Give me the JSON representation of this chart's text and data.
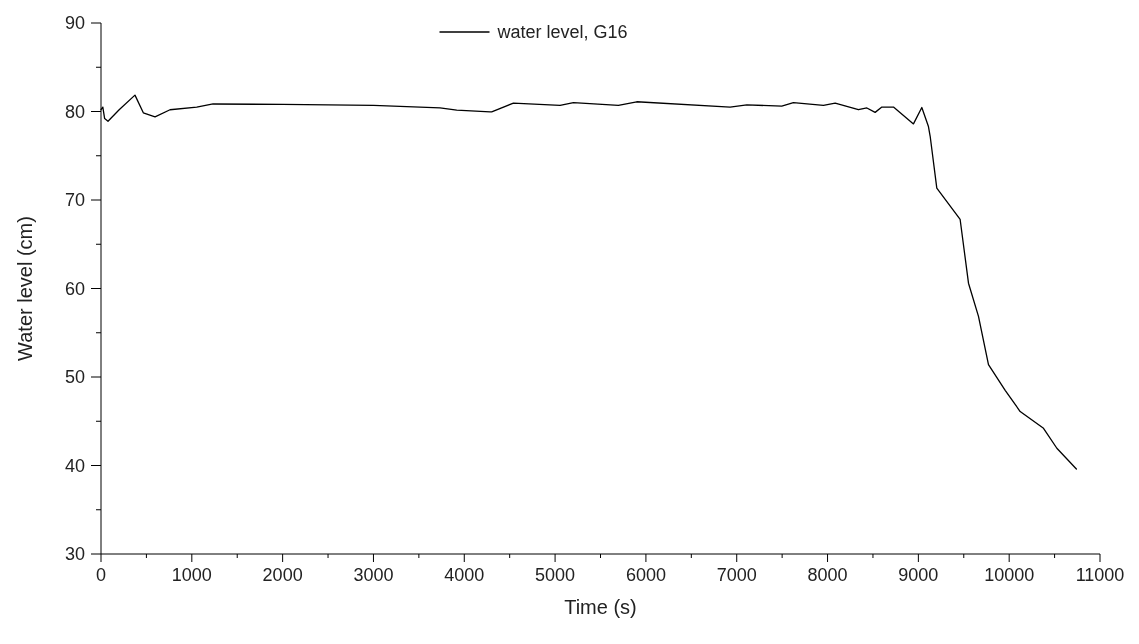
{
  "chart_data": {
    "type": "line",
    "xlabel": "Time (s)",
    "ylabel": "Water level (cm)",
    "xlim": [
      0,
      11000
    ],
    "ylim": [
      30,
      90
    ],
    "xticks": [
      0,
      1000,
      2000,
      3000,
      4000,
      5000,
      6000,
      7000,
      8000,
      9000,
      10000,
      11000
    ],
    "yticks": [
      30,
      40,
      50,
      60,
      70,
      80,
      90
    ],
    "legend": "top",
    "grid": false,
    "line_style": "solid",
    "marker": "none",
    "series": [
      {
        "name": "water level, G16",
        "color": "#000000",
        "x": [
          0,
          20,
          40,
          77,
          200,
          374,
          466,
          595,
          760,
          1054,
          1234,
          2000,
          3000,
          3733,
          3917,
          4284,
          4302,
          4541,
          5055,
          5202,
          5697,
          5899,
          6927,
          7111,
          7496,
          7624,
          7955,
          8084,
          8340,
          8433,
          8524,
          8598,
          8726,
          8836,
          8946,
          9038,
          9111,
          9130,
          9203,
          9460,
          9552,
          9662,
          9772,
          9956,
          10121,
          10378,
          10525,
          10740
        ],
        "values": [
          80.2,
          80.5,
          79.2,
          78.9,
          80.2,
          81.85,
          79.85,
          79.4,
          80.2,
          80.5,
          80.85,
          80.8,
          80.7,
          80.4,
          80.15,
          79.95,
          79.95,
          80.95,
          80.7,
          81.0,
          80.7,
          81.1,
          80.5,
          80.75,
          80.6,
          81.0,
          80.7,
          80.95,
          80.2,
          80.4,
          79.9,
          80.5,
          80.5,
          79.55,
          78.6,
          80.45,
          78.3,
          77.2,
          71.35,
          67.8,
          60.6,
          56.85,
          51.4,
          48.5,
          46.1,
          44.2,
          41.95,
          39.6
        ]
      }
    ]
  }
}
